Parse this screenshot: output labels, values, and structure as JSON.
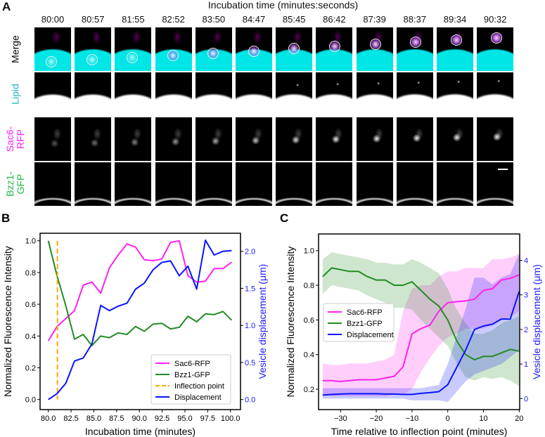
{
  "panel_a": {
    "letter": "A",
    "header": "Incubation time (minutes:seconds)",
    "times": [
      "80:00",
      "80:57",
      "81:55",
      "82:52",
      "83:50",
      "84:47",
      "85:45",
      "86:42",
      "87:39",
      "88:37",
      "89:34",
      "90:32"
    ],
    "rows": [
      {
        "label": "Merge",
        "color": "#000000"
      },
      {
        "label": "Lipid",
        "color": "#1fb8c0"
      },
      {
        "label": "Sac6-\nRFP",
        "color": "#ff22ff"
      },
      {
        "label": "Bzz1-\nGFP",
        "color": "#22bb44"
      }
    ]
  },
  "chart_data": [
    {
      "panel": "B",
      "type": "line",
      "xlabel": "Incubation time (minutes)",
      "ylabel": "Normalized Fluorescence Intensity",
      "y2label": "Vesicle displacement (μm)",
      "xlim": [
        79.2,
        100.8
      ],
      "ylim": [
        -0.05,
        1.05
      ],
      "y2lim": [
        -0.1,
        2.25
      ],
      "xticks": [
        "80.0",
        "82.5",
        "85.0",
        "87.5",
        "90.0",
        "92.5",
        "95.0",
        "97.5",
        "100.0"
      ],
      "yticks": [
        "0.0",
        "0.2",
        "0.4",
        "0.6",
        "0.8",
        "1.0"
      ],
      "y2ticks": [
        "0.0",
        "0.5",
        "1.0",
        "1.5",
        "2.0"
      ],
      "legend_position": "lower-right",
      "x": [
        80.0,
        80.96,
        81.92,
        82.88,
        83.83,
        84.79,
        85.75,
        86.71,
        87.67,
        88.63,
        89.58,
        90.54,
        91.5,
        92.46,
        93.42,
        94.38,
        95.33,
        96.29,
        97.25,
        98.21,
        99.17,
        100.13
      ],
      "series": [
        {
          "name": "Sac6-RFP",
          "color": "#ff22ee",
          "axis": "left",
          "values": [
            0.37,
            0.46,
            0.51,
            0.56,
            0.72,
            0.74,
            0.67,
            0.83,
            0.91,
            0.98,
            0.96,
            0.88,
            0.875,
            0.885,
            0.99,
            1.0,
            0.78,
            0.74,
            0.745,
            0.825,
            0.825,
            0.865
          ]
        },
        {
          "name": "Bzz1-GFP",
          "color": "#228b22",
          "axis": "left",
          "values": [
            1.0,
            0.78,
            0.59,
            0.38,
            0.41,
            0.34,
            0.4,
            0.39,
            0.42,
            0.41,
            0.46,
            0.43,
            0.475,
            0.48,
            0.445,
            0.455,
            0.525,
            0.49,
            0.54,
            0.535,
            0.555,
            0.5
          ]
        },
        {
          "name": "Inflection point",
          "color": "#ffa500",
          "axis": "left",
          "vline": 81.0,
          "dashed": true
        },
        {
          "name": "Displacement",
          "color": "#0a14ff",
          "axis": "right",
          "values": [
            0.0,
            0.08,
            0.22,
            0.52,
            0.56,
            0.75,
            1.27,
            1.2,
            1.26,
            1.3,
            1.49,
            1.57,
            1.75,
            1.85,
            1.87,
            1.67,
            1.8,
            1.49,
            2.15,
            1.95,
            2.0,
            2.01
          ]
        }
      ]
    },
    {
      "panel": "C",
      "type": "line",
      "xlabel": "Time relative to inflection point (minutes)",
      "ylabel": "Normalized Fluorescence Intensity",
      "y2label": "Vesicle displacement (μm)",
      "xlim": [
        -35,
        20
      ],
      "ylim": [
        0.1,
        1.1
      ],
      "y2lim": [
        -0.3,
        4.5
      ],
      "xticks": [
        -30,
        -20,
        -10,
        0,
        10,
        20
      ],
      "yticks": [
        "0.2",
        "0.4",
        "0.6",
        "0.8",
        "1.0"
      ],
      "y2ticks": [
        "0",
        "1",
        "2",
        "3",
        "4"
      ],
      "legend_position": "center-left",
      "x": [
        -35,
        -32.5,
        -30,
        -27.5,
        -25,
        -22.5,
        -20,
        -17.5,
        -15,
        -12.5,
        -10,
        -7.5,
        -5,
        -2.5,
        0,
        2.5,
        5,
        7.5,
        10,
        12.5,
        15,
        17.5,
        20
      ],
      "series": [
        {
          "name": "Sac6-RFP",
          "color": "#ff22ee",
          "axis": "left",
          "values": [
            0.25,
            0.25,
            0.245,
            0.25,
            0.255,
            0.255,
            0.255,
            0.265,
            0.275,
            0.33,
            0.52,
            0.55,
            0.57,
            0.65,
            0.7,
            0.705,
            0.71,
            0.72,
            0.77,
            0.78,
            0.83,
            0.84,
            0.86
          ],
          "lower": [
            0.17,
            0.16,
            0.16,
            0.16,
            0.16,
            0.16,
            0.16,
            0.16,
            0.17,
            0.17,
            0.2,
            0.3,
            0.38,
            0.45,
            0.5,
            0.52,
            0.55,
            0.55,
            0.55,
            0.57,
            0.6,
            0.62,
            0.65
          ],
          "upper": [
            0.35,
            0.34,
            0.34,
            0.35,
            0.35,
            0.35,
            0.36,
            0.37,
            0.4,
            0.65,
            0.78,
            0.8,
            0.8,
            0.85,
            0.88,
            0.88,
            0.9,
            0.9,
            0.9,
            0.95,
            0.95,
            0.96,
            0.98
          ]
        },
        {
          "name": "Bzz1-GFP",
          "color": "#228b22",
          "axis": "left",
          "values": [
            0.85,
            0.9,
            0.89,
            0.88,
            0.88,
            0.85,
            0.83,
            0.83,
            0.8,
            0.8,
            0.82,
            0.77,
            0.72,
            0.68,
            0.6,
            0.48,
            0.4,
            0.37,
            0.39,
            0.39,
            0.41,
            0.43,
            0.42
          ],
          "lower": [
            0.75,
            0.8,
            0.79,
            0.78,
            0.77,
            0.74,
            0.72,
            0.7,
            0.67,
            0.67,
            0.66,
            0.6,
            0.55,
            0.5,
            0.45,
            0.35,
            0.27,
            0.25,
            0.27,
            0.26,
            0.27,
            0.25,
            0.22
          ],
          "upper": [
            0.95,
            0.99,
            0.98,
            0.97,
            0.96,
            0.95,
            0.93,
            0.93,
            0.92,
            0.92,
            0.95,
            0.93,
            0.9,
            0.87,
            0.78,
            0.66,
            0.58,
            0.52,
            0.52,
            0.54,
            0.58,
            0.6,
            0.62
          ]
        },
        {
          "name": "Displacement",
          "color": "#0a14ff",
          "axis": "right",
          "values": [
            0.1,
            0.12,
            0.13,
            0.14,
            0.14,
            0.14,
            0.14,
            0.13,
            0.13,
            0.12,
            0.12,
            0.15,
            0.17,
            0.2,
            0.4,
            0.9,
            1.4,
            2.0,
            2.1,
            2.15,
            2.3,
            2.3,
            3.1
          ],
          "lower": [
            0.0,
            0.0,
            0.0,
            0.0,
            0.0,
            0.0,
            0.0,
            0.0,
            0.0,
            0.0,
            -0.05,
            -0.05,
            -0.05,
            -0.05,
            -0.1,
            0.2,
            0.5,
            0.7,
            0.8,
            0.9,
            1.0,
            1.2,
            1.4
          ],
          "upper": [
            0.3,
            0.3,
            0.3,
            0.3,
            0.3,
            0.3,
            0.3,
            0.3,
            0.3,
            0.3,
            0.3,
            0.3,
            0.35,
            0.4,
            1.0,
            1.8,
            2.6,
            3.5,
            3.5,
            3.3,
            3.5,
            3.6,
            4.2
          ]
        }
      ]
    }
  ]
}
